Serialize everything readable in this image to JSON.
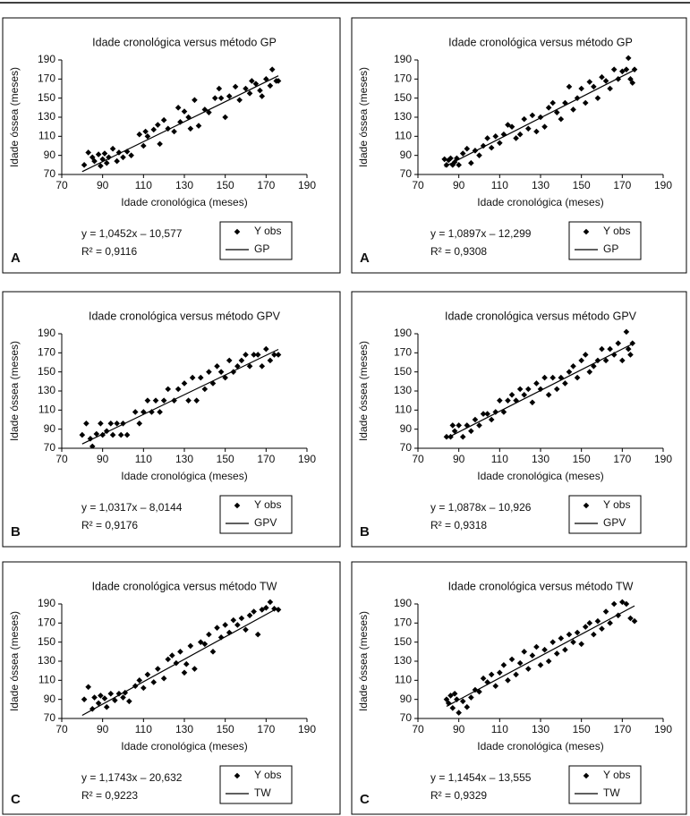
{
  "chart_data": [
    {
      "type": "scatter",
      "title": "Idade cronológica versus método GP",
      "panel": "A",
      "x_label": "Idade cronológica (meses)",
      "y_label": "Idade óssea (meses)",
      "equation": "y = 1,0452x – 10,577",
      "r2": "R² = 0,9116",
      "xlim": [
        70,
        190
      ],
      "ylim": [
        70,
        190
      ],
      "xticks": [
        70,
        90,
        110,
        130,
        150,
        170,
        190
      ],
      "yticks": [
        70,
        90,
        110,
        130,
        150,
        170,
        190
      ],
      "series": [
        {
          "name": "Y obs",
          "color": "#000000",
          "marker": "diamond",
          "x": [
            81,
            83,
            85,
            86,
            88,
            89,
            90,
            91,
            92,
            93,
            95,
            97,
            98,
            100,
            102,
            104,
            108,
            110,
            111,
            112,
            115,
            117,
            118,
            120,
            122,
            125,
            127,
            128,
            130,
            132,
            133,
            135,
            137,
            140,
            142,
            145,
            147,
            148,
            150,
            152,
            155,
            157,
            160,
            162,
            163,
            165,
            167,
            168,
            170,
            172,
            173,
            175,
            176
          ],
          "values": [
            80,
            93,
            88,
            84,
            91,
            79,
            86,
            92,
            82,
            88,
            97,
            84,
            93,
            88,
            94,
            90,
            112,
            100,
            115,
            110,
            117,
            122,
            102,
            127,
            118,
            115,
            140,
            125,
            136,
            130,
            118,
            148,
            121,
            138,
            135,
            150,
            160,
            150,
            130,
            152,
            162,
            148,
            160,
            155,
            168,
            165,
            158,
            152,
            170,
            163,
            180,
            168,
            168
          ]
        },
        {
          "name": "GP",
          "color": "#000000",
          "kind": "line",
          "x": [
            80,
            176
          ],
          "values": [
            73,
            173.4
          ]
        }
      ]
    },
    {
      "type": "scatter",
      "title": "Idade cronológica versus método GP",
      "panel": "A",
      "x_label": "Idade cronológica (meses)",
      "y_label": "Idade óssea (meses)",
      "equation": "y = 1,0897x – 12,299",
      "r2": "R² = 0,9308",
      "xlim": [
        70,
        190
      ],
      "ylim": [
        70,
        190
      ],
      "xticks": [
        70,
        90,
        110,
        130,
        150,
        170,
        190
      ],
      "yticks": [
        70,
        90,
        110,
        130,
        150,
        170,
        190
      ],
      "series": [
        {
          "name": "Y obs",
          "color": "#000000",
          "marker": "diamond",
          "x": [
            83,
            84,
            85,
            86,
            87,
            88,
            89,
            90,
            92,
            94,
            96,
            98,
            100,
            102,
            104,
            106,
            108,
            110,
            112,
            114,
            116,
            118,
            120,
            122,
            124,
            126,
            128,
            130,
            132,
            134,
            136,
            138,
            140,
            142,
            144,
            146,
            148,
            150,
            152,
            154,
            156,
            158,
            160,
            162,
            164,
            166,
            168,
            170,
            172,
            173,
            174,
            175,
            176
          ],
          "values": [
            86,
            80,
            85,
            87,
            80,
            83,
            87,
            80,
            92,
            97,
            82,
            95,
            90,
            100,
            108,
            98,
            110,
            103,
            112,
            122,
            120,
            108,
            112,
            128,
            118,
            132,
            115,
            130,
            120,
            140,
            145,
            135,
            128,
            145,
            162,
            138,
            150,
            160,
            145,
            167,
            162,
            150,
            172,
            168,
            160,
            180,
            170,
            178,
            180,
            192,
            170,
            166,
            180
          ]
        },
        {
          "name": "GP",
          "color": "#000000",
          "kind": "line",
          "x": [
            83,
            176
          ],
          "values": [
            78.1,
            179.5
          ]
        }
      ]
    },
    {
      "type": "scatter",
      "title": "Idade cronológica versus método GPV",
      "panel": "B",
      "x_label": "Idade cronológica (meses)",
      "y_label": "Idade óssea (meses)",
      "equation": "y = 1,0317x – 8,0144",
      "r2": "R² = 0,9176",
      "xlim": [
        70,
        190
      ],
      "ylim": [
        70,
        190
      ],
      "xticks": [
        70,
        90,
        110,
        130,
        150,
        170,
        190
      ],
      "yticks": [
        70,
        90,
        110,
        130,
        150,
        170,
        190
      ],
      "series": [
        {
          "name": "Y obs",
          "color": "#000000",
          "marker": "diamond",
          "x": [
            80,
            82,
            84,
            85,
            87,
            89,
            90,
            92,
            94,
            95,
            97,
            99,
            100,
            102,
            106,
            108,
            110,
            112,
            114,
            116,
            118,
            120,
            122,
            125,
            127,
            130,
            132,
            134,
            136,
            138,
            140,
            142,
            144,
            146,
            148,
            150,
            152,
            154,
            156,
            158,
            160,
            162,
            164,
            166,
            168,
            170,
            172,
            174,
            176
          ],
          "values": [
            84,
            96,
            80,
            72,
            85,
            96,
            84,
            88,
            96,
            84,
            96,
            84,
            96,
            84,
            108,
            96,
            108,
            120,
            108,
            120,
            108,
            120,
            132,
            120,
            132,
            138,
            120,
            144,
            120,
            144,
            132,
            150,
            138,
            156,
            150,
            144,
            162,
            150,
            156,
            162,
            168,
            156,
            168,
            168,
            156,
            174,
            162,
            168,
            168
          ]
        },
        {
          "name": "GPV",
          "color": "#000000",
          "kind": "line",
          "x": [
            80,
            176
          ],
          "values": [
            74.5,
            173.6
          ]
        }
      ]
    },
    {
      "type": "scatter",
      "title": "Idade cronológica versus método GPV",
      "panel": "B",
      "x_label": "Idade cronológica (meses)",
      "y_label": "Idade óssea (meses)",
      "equation": "y = 1,0878x – 10,926",
      "r2": "R² = 0,9318",
      "xlim": [
        70,
        190
      ],
      "ylim": [
        70,
        190
      ],
      "xticks": [
        70,
        90,
        110,
        130,
        150,
        170,
        190
      ],
      "yticks": [
        70,
        90,
        110,
        130,
        150,
        170,
        190
      ],
      "series": [
        {
          "name": "Y obs",
          "color": "#000000",
          "marker": "diamond",
          "x": [
            84,
            86,
            87,
            88,
            90,
            92,
            94,
            96,
            98,
            100,
            102,
            104,
            106,
            108,
            110,
            112,
            114,
            116,
            118,
            120,
            122,
            124,
            126,
            128,
            130,
            132,
            134,
            136,
            138,
            140,
            142,
            144,
            146,
            148,
            150,
            152,
            154,
            156,
            158,
            160,
            162,
            164,
            166,
            168,
            170,
            172,
            173,
            174,
            175
          ],
          "values": [
            82,
            82,
            94,
            88,
            94,
            82,
            94,
            88,
            100,
            94,
            106,
            106,
            100,
            108,
            120,
            108,
            120,
            126,
            120,
            132,
            126,
            132,
            118,
            138,
            132,
            144,
            126,
            144,
            132,
            144,
            138,
            150,
            156,
            144,
            162,
            168,
            150,
            156,
            162,
            174,
            162,
            174,
            168,
            180,
            162,
            192,
            174,
            168,
            180
          ]
        },
        {
          "name": "GPV",
          "color": "#000000",
          "kind": "line",
          "x": [
            84,
            176
          ],
          "values": [
            80.5,
            180.5
          ]
        }
      ]
    },
    {
      "type": "scatter",
      "title": "Idade cronológica versus método TW",
      "panel": "C",
      "x_label": "Idade cronológica (meses)",
      "y_label": "Idade óssea (meses)",
      "equation": "y = 1,1743x – 20,632",
      "r2": "R² = 0,9223",
      "xlim": [
        70,
        190
      ],
      "ylim": [
        70,
        190
      ],
      "xticks": [
        70,
        90,
        110,
        130,
        150,
        170,
        190
      ],
      "yticks": [
        70,
        90,
        110,
        130,
        150,
        170,
        190
      ],
      "series": [
        {
          "name": "Y obs",
          "color": "#000000",
          "marker": "diamond",
          "x": [
            81,
            83,
            85,
            86,
            88,
            89,
            91,
            92,
            94,
            96,
            98,
            100,
            101,
            103,
            106,
            108,
            110,
            112,
            115,
            117,
            120,
            122,
            124,
            126,
            128,
            130,
            131,
            133,
            135,
            138,
            140,
            142,
            144,
            146,
            148,
            150,
            152,
            154,
            156,
            158,
            160,
            162,
            164,
            166,
            168,
            170,
            172,
            174,
            176
          ],
          "values": [
            90,
            103,
            80,
            92,
            86,
            94,
            91,
            82,
            96,
            89,
            96,
            92,
            97,
            88,
            104,
            110,
            102,
            116,
            108,
            122,
            112,
            132,
            136,
            128,
            140,
            118,
            127,
            146,
            122,
            150,
            148,
            158,
            140,
            165,
            155,
            168,
            160,
            173,
            168,
            175,
            163,
            178,
            182,
            158,
            184,
            186,
            192,
            185,
            184
          ]
        },
        {
          "name": "TW",
          "color": "#000000",
          "kind": "line",
          "x": [
            80,
            176
          ],
          "values": [
            73.3,
            186
          ]
        }
      ]
    },
    {
      "type": "scatter",
      "title": "Idade cronológica versus método TW",
      "panel": "C",
      "x_label": "Idade cronológica (meses)",
      "y_label": "Idade óssea (meses)",
      "equation": "y = 1,1454x – 13,555",
      "r2": "R² = 0,9329",
      "xlim": [
        70,
        190
      ],
      "ylim": [
        70,
        190
      ],
      "xticks": [
        70,
        90,
        110,
        130,
        150,
        170,
        190
      ],
      "yticks": [
        70,
        90,
        110,
        130,
        150,
        170,
        190
      ],
      "series": [
        {
          "name": "Y obs",
          "color": "#000000",
          "marker": "diamond",
          "x": [
            84,
            85,
            86,
            87,
            88,
            89,
            90,
            92,
            94,
            96,
            98,
            100,
            102,
            104,
            106,
            108,
            110,
            112,
            114,
            116,
            118,
            120,
            122,
            124,
            126,
            128,
            130,
            132,
            134,
            136,
            138,
            140,
            142,
            144,
            146,
            148,
            150,
            152,
            154,
            156,
            158,
            160,
            162,
            164,
            166,
            168,
            170,
            172,
            174,
            176
          ],
          "values": [
            90,
            86,
            94,
            81,
            96,
            90,
            76,
            88,
            82,
            92,
            100,
            98,
            112,
            108,
            116,
            104,
            118,
            126,
            110,
            132,
            116,
            128,
            140,
            122,
            136,
            145,
            126,
            142,
            130,
            150,
            138,
            154,
            142,
            158,
            150,
            160,
            148,
            166,
            170,
            158,
            172,
            164,
            182,
            170,
            190,
            178,
            192,
            190,
            175,
            172
          ]
        },
        {
          "name": "TW",
          "color": "#000000",
          "kind": "line",
          "x": [
            84,
            176
          ],
          "values": [
            82.7,
            188
          ]
        }
      ]
    }
  ]
}
